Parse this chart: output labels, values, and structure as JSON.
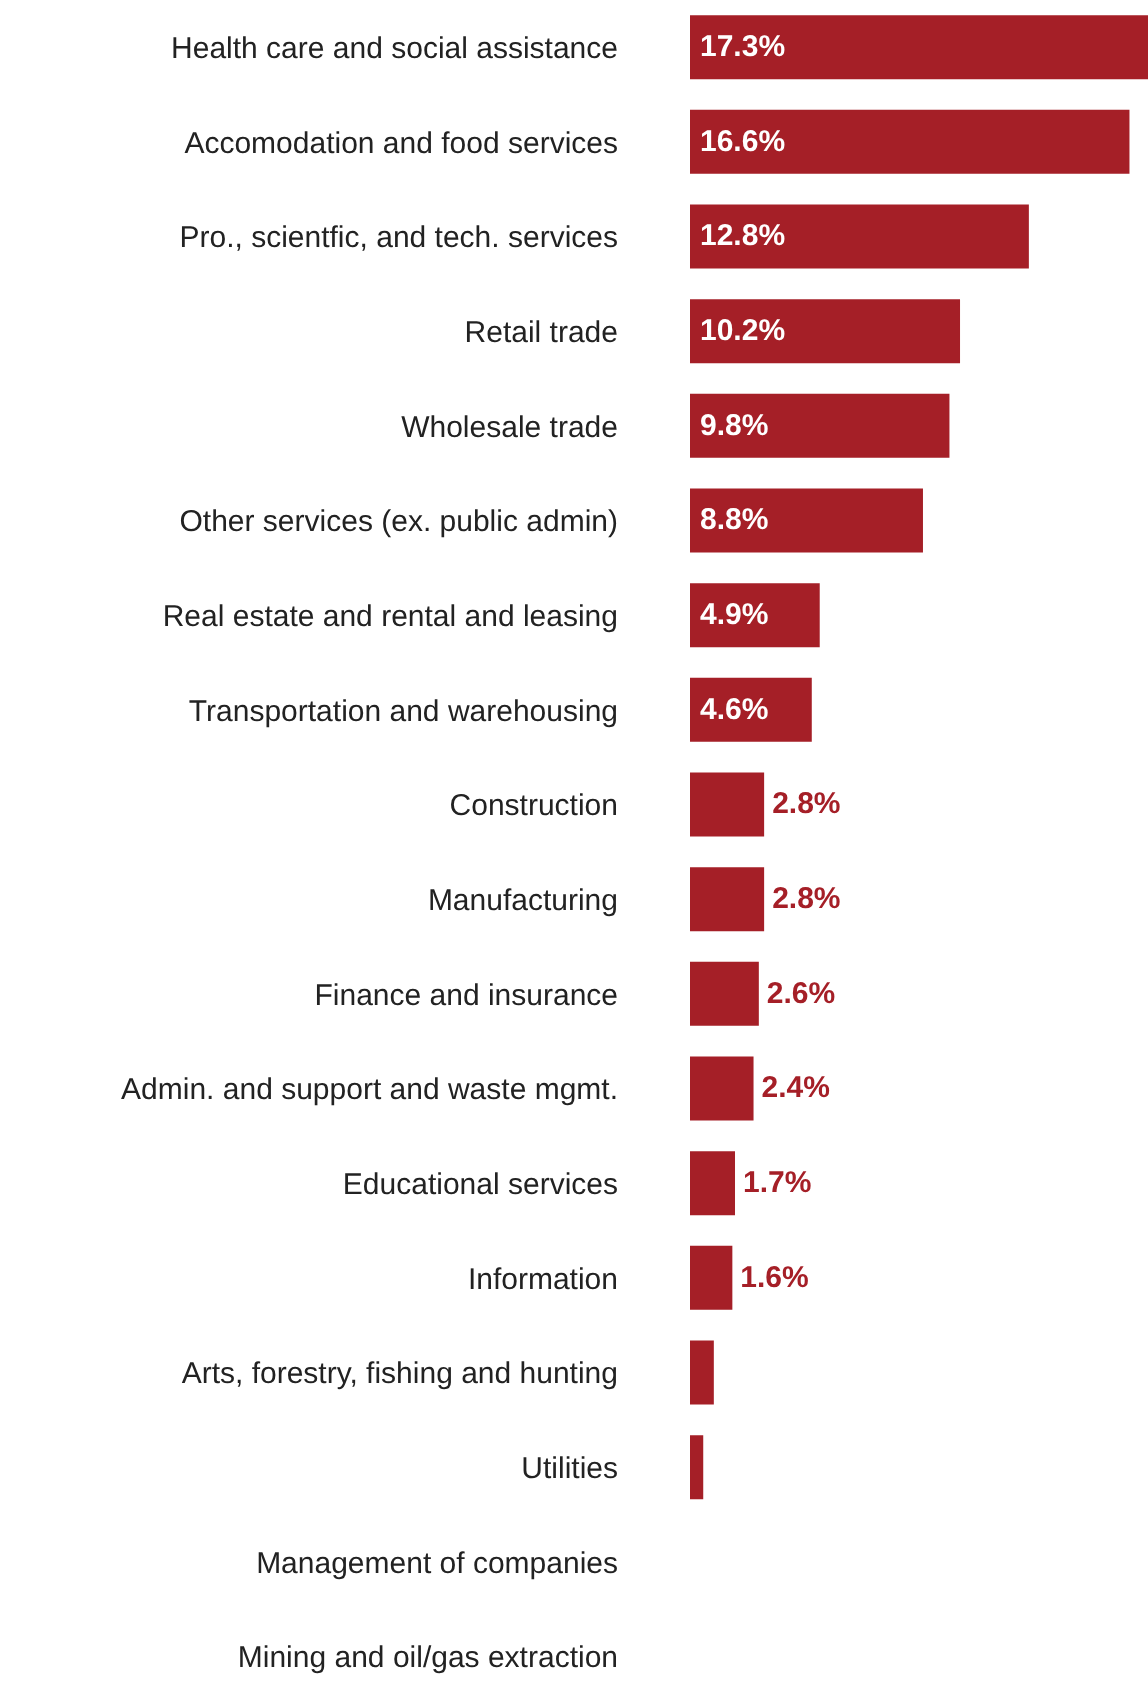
{
  "chart_data": {
    "type": "bar",
    "orientation": "horizontal",
    "categories": [
      "Health care and social assistance",
      "Accomodation and food services",
      "Pro., scientfic, and tech. services",
      "Retail trade",
      "Wholesale trade",
      "Other  services (ex. public admin)",
      "Real estate and rental and leasing",
      "Transportation and warehousing",
      "Construction",
      "Manufacturing",
      "Finance and insurance",
      "Admin. and support and waste mgmt.",
      "Educational services",
      "Information",
      "Arts, forestry, fishing and hunting",
      "Utilities",
      "Management of companies",
      "Mining and oil/gas extraction"
    ],
    "values": [
      17.3,
      16.6,
      12.8,
      10.2,
      9.8,
      8.8,
      4.9,
      4.6,
      2.8,
      2.8,
      2.6,
      2.4,
      1.7,
      1.6,
      0.9,
      0.5,
      0,
      0
    ],
    "value_labels": [
      "17.3%",
      "16.6%",
      "12.8%",
      "10.2%",
      "9.8%",
      "8.8%",
      "4.9%",
      "4.6%",
      "2.8%",
      "2.8%",
      "2.6%",
      "2.4%",
      "1.7%",
      "1.6%",
      null,
      null,
      null,
      null
    ],
    "color": "#a51f27",
    "grid": false,
    "legend": false
  }
}
